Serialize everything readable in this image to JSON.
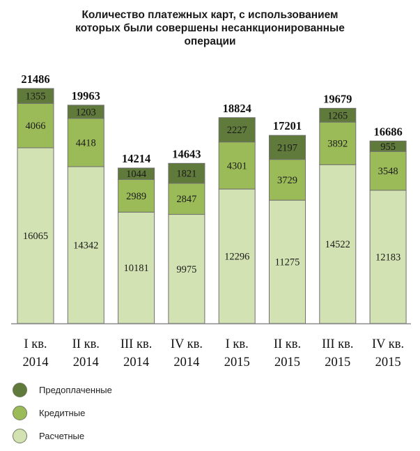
{
  "chart_data": {
    "type": "bar",
    "stacked": true,
    "title_lines": [
      "Количество платежных карт, с использованием",
      "которых были совершены несанкционированные",
      "операции"
    ],
    "categories": [
      [
        "I кв.",
        "2014"
      ],
      [
        "II кв.",
        "2014"
      ],
      [
        "III кв.",
        "2014"
      ],
      [
        "IV кв.",
        "2014"
      ],
      [
        "I кв.",
        "2015"
      ],
      [
        "II кв.",
        "2015"
      ],
      [
        "III кв.",
        "2015"
      ],
      [
        "IV кв.",
        "2015"
      ]
    ],
    "totals": [
      21486,
      19963,
      14214,
      14643,
      18824,
      17201,
      19679,
      16686
    ],
    "series": [
      {
        "name": "Расчетные",
        "color": "#d3e2b3",
        "values": [
          16065,
          14342,
          10181,
          9975,
          12296,
          11275,
          14522,
          12183
        ]
      },
      {
        "name": "Кредитные",
        "color": "#9bbb59",
        "values": [
          4066,
          4418,
          2989,
          2847,
          4301,
          3729,
          3892,
          3548
        ]
      },
      {
        "name": "Предоплаченные",
        "color": "#5f7a3a",
        "values": [
          1355,
          1203,
          1044,
          1821,
          2227,
          2197,
          1265,
          955
        ]
      }
    ],
    "legend": [
      "Предоплаченные",
      "Кредитные",
      "Расчетные"
    ],
    "legend_colors": [
      "#5f7a3a",
      "#9bbb59",
      "#d3e2b3"
    ],
    "ylim": [
      0,
      21486
    ],
    "xlabel": "",
    "ylabel": "",
    "grid": false
  }
}
